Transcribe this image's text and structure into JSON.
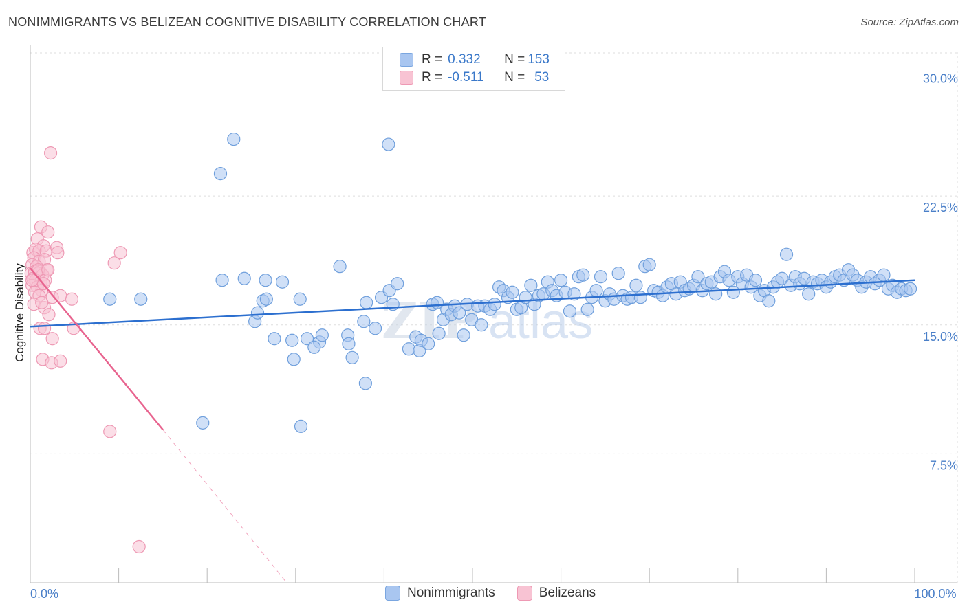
{
  "title": "NONIMMIGRANTS VS BELIZEAN COGNITIVE DISABILITY CORRELATION CHART",
  "source": "Source: ZipAtlas.com",
  "watermark": {
    "part1": "ZIP",
    "part2": "atlas"
  },
  "legend": {
    "rows": [
      {
        "r_label": "R = ",
        "r_value": "0.332",
        "n_label": "N = ",
        "n_value": "153",
        "color": "#a9c6f0",
        "border": "#7aa6e0"
      },
      {
        "r_label": "R = ",
        "r_value": "-0.511",
        "n_label": "N = ",
        "n_value": "53",
        "color": "#f8c3d3",
        "border": "#ee99b4"
      }
    ]
  },
  "chart_data": {
    "type": "scatter",
    "title": "NONIMMIGRANTS VS BELIZEAN COGNITIVE DISABILITY CORRELATION CHART",
    "xlabel": "",
    "ylabel": "Cognitive Disability",
    "xlim": [
      0,
      100
    ],
    "ylim": [
      0,
      30.9
    ],
    "x_tick_labels": [
      {
        "value": 0,
        "label": "0.0%"
      },
      {
        "value": 100,
        "label": "100.0%"
      }
    ],
    "y_ticks": [
      {
        "value": 7.5,
        "label": "7.5%"
      },
      {
        "value": 15.0,
        "label": "15.0%"
      },
      {
        "value": 22.5,
        "label": "22.5%"
      },
      {
        "value": 30.0,
        "label": "30.0%"
      }
    ],
    "grid": true,
    "legend_placement": "top-center",
    "series": [
      {
        "name": "Nonimmigrants",
        "color": "#a9c6f0",
        "stroke": "#6f9fdc",
        "trend": {
          "x0": 0,
          "y0": 14.9,
          "x1": 100,
          "y1": 17.6,
          "color": "#2c6fcf"
        },
        "points": [
          [
            23.0,
            25.8
          ],
          [
            21.5,
            23.8
          ],
          [
            40.5,
            25.5
          ],
          [
            9.0,
            16.5
          ],
          [
            12.5,
            16.5
          ],
          [
            21.7,
            17.6
          ],
          [
            24.2,
            17.7
          ],
          [
            26.6,
            17.6
          ],
          [
            28.5,
            17.5
          ],
          [
            25.4,
            15.2
          ],
          [
            25.7,
            15.7
          ],
          [
            26.3,
            16.4
          ],
          [
            26.7,
            16.5
          ],
          [
            27.6,
            14.2
          ],
          [
            29.6,
            14.1
          ],
          [
            30.5,
            16.5
          ],
          [
            29.8,
            13.0
          ],
          [
            31.3,
            14.2
          ],
          [
            32.7,
            14.0
          ],
          [
            32.1,
            13.7
          ],
          [
            33.0,
            14.4
          ],
          [
            35.0,
            18.4
          ],
          [
            35.9,
            14.4
          ],
          [
            36.0,
            13.9
          ],
          [
            36.4,
            13.1
          ],
          [
            37.7,
            15.2
          ],
          [
            38.0,
            16.3
          ],
          [
            39.0,
            14.8
          ],
          [
            39.7,
            16.6
          ],
          [
            40.6,
            17.0
          ],
          [
            41.0,
            16.2
          ],
          [
            41.5,
            17.4
          ],
          [
            42.8,
            13.6
          ],
          [
            43.6,
            14.3
          ],
          [
            44.0,
            13.5
          ],
          [
            44.2,
            14.1
          ],
          [
            45.0,
            13.9
          ],
          [
            45.5,
            16.2
          ],
          [
            46.0,
            16.3
          ],
          [
            46.2,
            14.5
          ],
          [
            46.7,
            15.3
          ],
          [
            47.1,
            15.9
          ],
          [
            47.6,
            15.6
          ],
          [
            48.0,
            16.1
          ],
          [
            48.5,
            15.7
          ],
          [
            49.0,
            14.4
          ],
          [
            49.4,
            16.2
          ],
          [
            49.9,
            15.3
          ],
          [
            50.6,
            16.1
          ],
          [
            51.0,
            15.0
          ],
          [
            51.4,
            16.1
          ],
          [
            52.0,
            15.9
          ],
          [
            52.5,
            16.2
          ],
          [
            53.0,
            17.2
          ],
          [
            53.5,
            17.0
          ],
          [
            54.0,
            16.6
          ],
          [
            54.5,
            16.9
          ],
          [
            55.0,
            15.9
          ],
          [
            55.5,
            16.0
          ],
          [
            56.0,
            16.6
          ],
          [
            56.6,
            17.3
          ],
          [
            57.0,
            16.2
          ],
          [
            57.5,
            16.7
          ],
          [
            58.0,
            16.8
          ],
          [
            58.5,
            17.5
          ],
          [
            59.0,
            17.0
          ],
          [
            59.5,
            16.7
          ],
          [
            60.0,
            17.6
          ],
          [
            60.5,
            16.9
          ],
          [
            61.0,
            15.8
          ],
          [
            61.5,
            16.8
          ],
          [
            62.0,
            17.8
          ],
          [
            62.5,
            17.9
          ],
          [
            63.0,
            15.9
          ],
          [
            63.5,
            16.6
          ],
          [
            64.0,
            17.0
          ],
          [
            64.5,
            17.8
          ],
          [
            65.0,
            16.4
          ],
          [
            65.5,
            16.8
          ],
          [
            66.0,
            16.5
          ],
          [
            66.5,
            18.0
          ],
          [
            67.0,
            16.7
          ],
          [
            67.5,
            16.5
          ],
          [
            68.0,
            16.6
          ],
          [
            68.5,
            17.3
          ],
          [
            69.0,
            16.6
          ],
          [
            69.5,
            18.4
          ],
          [
            70.0,
            18.5
          ],
          [
            70.5,
            17.0
          ],
          [
            71.0,
            16.9
          ],
          [
            71.5,
            16.7
          ],
          [
            72.0,
            17.2
          ],
          [
            72.5,
            17.4
          ],
          [
            73.0,
            16.8
          ],
          [
            73.5,
            17.5
          ],
          [
            74.0,
            17.0
          ],
          [
            74.5,
            17.1
          ],
          [
            75.0,
            17.3
          ],
          [
            75.5,
            17.8
          ],
          [
            76.0,
            17.0
          ],
          [
            76.5,
            17.4
          ],
          [
            77.0,
            17.5
          ],
          [
            77.5,
            16.8
          ],
          [
            78.0,
            17.8
          ],
          [
            78.5,
            18.1
          ],
          [
            79.0,
            17.6
          ],
          [
            79.5,
            16.9
          ],
          [
            80.0,
            17.8
          ],
          [
            80.5,
            17.4
          ],
          [
            81.0,
            17.9
          ],
          [
            81.5,
            17.2
          ],
          [
            82.0,
            17.6
          ],
          [
            82.5,
            16.7
          ],
          [
            83.0,
            17.0
          ],
          [
            83.5,
            16.4
          ],
          [
            84.0,
            17.2
          ],
          [
            84.5,
            17.5
          ],
          [
            85.0,
            17.7
          ],
          [
            85.5,
            19.1
          ],
          [
            86.0,
            17.3
          ],
          [
            86.5,
            17.8
          ],
          [
            87.0,
            17.4
          ],
          [
            87.5,
            17.7
          ],
          [
            88.0,
            16.8
          ],
          [
            88.5,
            17.5
          ],
          [
            89.0,
            17.4
          ],
          [
            89.5,
            17.6
          ],
          [
            90.0,
            17.2
          ],
          [
            90.5,
            17.5
          ],
          [
            91.0,
            17.8
          ],
          [
            91.5,
            17.9
          ],
          [
            92.0,
            17.6
          ],
          [
            92.5,
            18.2
          ],
          [
            93.0,
            17.9
          ],
          [
            93.5,
            17.6
          ],
          [
            94.0,
            17.2
          ],
          [
            94.5,
            17.5
          ],
          [
            95.0,
            17.8
          ],
          [
            95.5,
            17.4
          ],
          [
            96.0,
            17.6
          ],
          [
            96.5,
            17.9
          ],
          [
            97.0,
            17.1
          ],
          [
            97.5,
            17.3
          ],
          [
            98.0,
            16.9
          ],
          [
            98.5,
            17.1
          ],
          [
            99.0,
            17.0
          ],
          [
            99.5,
            17.1
          ],
          [
            19.5,
            9.3
          ],
          [
            30.6,
            9.1
          ],
          [
            37.9,
            11.6
          ]
        ]
      },
      {
        "name": "Belizeans",
        "color": "#f8c3d3",
        "stroke": "#ee99b4",
        "trend": {
          "x0": 0,
          "y0": 18.3,
          "x1": 15,
          "y1": 8.9,
          "x_dash_end": 29,
          "y_dash_end": 0,
          "color": "#e8648f"
        },
        "points": [
          [
            2.3,
            25.0
          ],
          [
            1.2,
            20.7
          ],
          [
            2.0,
            20.4
          ],
          [
            0.8,
            20.0
          ],
          [
            1.5,
            19.6
          ],
          [
            0.3,
            19.2
          ],
          [
            0.6,
            19.4
          ],
          [
            1.0,
            19.3
          ],
          [
            1.8,
            19.3
          ],
          [
            3.0,
            19.5
          ],
          [
            3.1,
            19.2
          ],
          [
            0.4,
            18.9
          ],
          [
            1.0,
            18.7
          ],
          [
            1.6,
            18.8
          ],
          [
            0.2,
            18.5
          ],
          [
            0.7,
            18.4
          ],
          [
            1.1,
            18.1
          ],
          [
            1.9,
            18.2
          ],
          [
            0.1,
            18.0
          ],
          [
            0.5,
            18.1
          ],
          [
            0.9,
            18.0
          ],
          [
            1.4,
            17.9
          ],
          [
            0.3,
            17.7
          ],
          [
            0.6,
            17.6
          ],
          [
            1.2,
            17.5
          ],
          [
            1.7,
            17.6
          ],
          [
            0.2,
            17.3
          ],
          [
            0.8,
            17.2
          ],
          [
            1.3,
            17.0
          ],
          [
            0.5,
            16.9
          ],
          [
            1.0,
            16.7
          ],
          [
            2.5,
            16.6
          ],
          [
            3.4,
            16.7
          ],
          [
            4.7,
            16.5
          ],
          [
            0.4,
            16.2
          ],
          [
            1.6,
            16.0
          ],
          [
            1.3,
            16.3
          ],
          [
            2.1,
            15.6
          ],
          [
            1.1,
            14.8
          ],
          [
            1.6,
            14.8
          ],
          [
            4.9,
            14.8
          ],
          [
            2.5,
            14.2
          ],
          [
            1.4,
            13.0
          ],
          [
            2.4,
            12.8
          ],
          [
            3.4,
            12.9
          ],
          [
            9.0,
            8.8
          ],
          [
            12.3,
            2.1
          ],
          [
            9.5,
            18.6
          ],
          [
            10.2,
            19.2
          ],
          [
            0.9,
            18.2
          ],
          [
            1.5,
            17.4
          ],
          [
            2.0,
            18.2
          ],
          [
            0.2,
            17.6
          ]
        ]
      }
    ]
  }
}
